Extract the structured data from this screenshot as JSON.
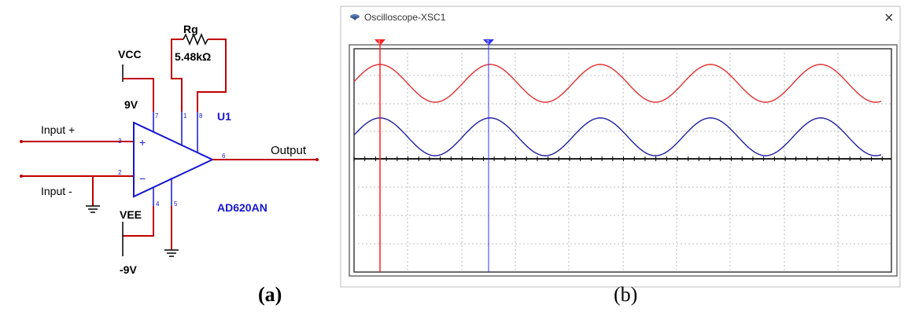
{
  "schematic": {
    "resistor_name": "Rg",
    "resistor_value": "5.48kΩ",
    "vcc_label": "VCC",
    "vcc_voltage": "9V",
    "vee_label": "VEE",
    "vee_voltage": "-9V",
    "input_plus": "Input +",
    "input_minus": "Input -",
    "output": "Output",
    "ref": "U1",
    "part": "AD620AN",
    "pins": [
      "7",
      "1",
      "8",
      "3",
      "2",
      "6",
      "4",
      "5"
    ],
    "plus_sign": "+",
    "minus_sign": "−"
  },
  "scope": {
    "title": "Oscilloscope-XSC1",
    "close": "×",
    "channel_a_color": "#e03030",
    "channel_b_color": "#2020a0",
    "cursor_1_color": "#ff2020",
    "cursor_2_color": "#3030ff"
  },
  "captions": {
    "a": "(a)",
    "b": "(b)"
  },
  "colors": {
    "wire_red": "#ff3030",
    "schematic_blue": "#1515d0"
  }
}
